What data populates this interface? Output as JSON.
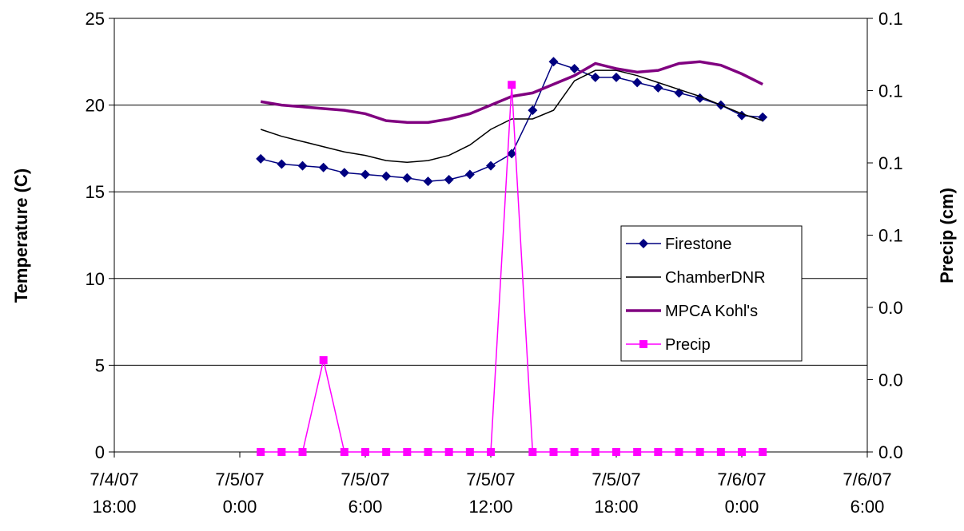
{
  "chart_data": {
    "type": "line",
    "y_label": "Temperature (C)",
    "y2_label": "Precip (cm)",
    "x": [
      "2007-07-05T01:00",
      "2007-07-05T02:00",
      "2007-07-05T03:00",
      "2007-07-05T04:00",
      "2007-07-05T05:00",
      "2007-07-05T06:00",
      "2007-07-05T07:00",
      "2007-07-05T08:00",
      "2007-07-05T09:00",
      "2007-07-05T10:00",
      "2007-07-05T11:00",
      "2007-07-05T12:00",
      "2007-07-05T13:00",
      "2007-07-05T14:00",
      "2007-07-05T15:00",
      "2007-07-05T16:00",
      "2007-07-05T17:00",
      "2007-07-05T18:00",
      "2007-07-05T19:00",
      "2007-07-05T20:00",
      "2007-07-05T21:00",
      "2007-07-05T22:00",
      "2007-07-05T23:00",
      "2007-07-06T00:00",
      "2007-07-06T01:00"
    ],
    "xlim": [
      "2007-07-04T18:00",
      "2007-07-06T06:00"
    ],
    "xticks": [
      {
        "value": "2007-07-04T18:00",
        "label": "7/4/07 18:00"
      },
      {
        "value": "2007-07-05T00:00",
        "label": "7/5/07 0:00"
      },
      {
        "value": "2007-07-05T06:00",
        "label": "7/5/07 6:00"
      },
      {
        "value": "2007-07-05T12:00",
        "label": "7/5/07 12:00"
      },
      {
        "value": "2007-07-05T18:00",
        "label": "7/5/07 18:00"
      },
      {
        "value": "2007-07-06T00:00",
        "label": "7/6/07 0:00"
      },
      {
        "value": "2007-07-06T06:00",
        "label": "7/6/07 6:00"
      }
    ],
    "ylim": [
      0,
      25
    ],
    "yticks": [
      0,
      5,
      10,
      15,
      20,
      25
    ],
    "y2lim": [
      0,
      0.12
    ],
    "y2ticks": [
      {
        "value": 0,
        "label": "0.0"
      },
      {
        "value": 0.02,
        "label": "0.0"
      },
      {
        "value": 0.04,
        "label": "0.0"
      },
      {
        "value": 0.06,
        "label": "0.1"
      },
      {
        "value": 0.08,
        "label": "0.1"
      },
      {
        "value": 0.1,
        "label": "0.1"
      },
      {
        "value": 0.12,
        "label": "0.1"
      }
    ],
    "grid": true,
    "series": [
      {
        "name": "Firestone",
        "color": "#000080",
        "marker": "diamond",
        "values": [
          16.9,
          16.6,
          16.5,
          16.4,
          16.1,
          16.0,
          15.9,
          15.8,
          15.6,
          15.7,
          16.0,
          16.5,
          17.2,
          19.7,
          22.5,
          22.1,
          21.6,
          21.6,
          21.3,
          21.0,
          20.7,
          20.4,
          20.0,
          19.4,
          19.3
        ]
      },
      {
        "name": "ChamberDNR",
        "color": "#000000",
        "marker": "none",
        "values": [
          18.6,
          18.2,
          17.9,
          17.6,
          17.3,
          17.1,
          16.8,
          16.7,
          16.8,
          17.1,
          17.7,
          18.6,
          19.2,
          19.2,
          19.7,
          21.4,
          22.0,
          22.0,
          21.7,
          21.3,
          20.9,
          20.5,
          20.0,
          19.5,
          19.1
        ]
      },
      {
        "name": "MPCA Kohl's",
        "color": "#800080",
        "marker": "none",
        "values": [
          20.2,
          20.0,
          19.9,
          19.8,
          19.7,
          19.5,
          19.1,
          19.0,
          19.0,
          19.2,
          19.5,
          20.0,
          20.5,
          20.7,
          21.2,
          21.7,
          22.4,
          22.1,
          21.9,
          22.0,
          22.4,
          22.5,
          22.3,
          21.8,
          21.2
        ]
      },
      {
        "name": "Precip",
        "color": "#ff00ff",
        "marker": "square",
        "axis": "y2",
        "values": [
          0,
          0,
          0,
          0.0254,
          0,
          0,
          0,
          0,
          0,
          0,
          0,
          0,
          0.1016,
          0,
          0,
          0,
          0,
          0,
          0,
          0,
          0,
          0,
          0,
          0,
          0
        ]
      }
    ]
  }
}
